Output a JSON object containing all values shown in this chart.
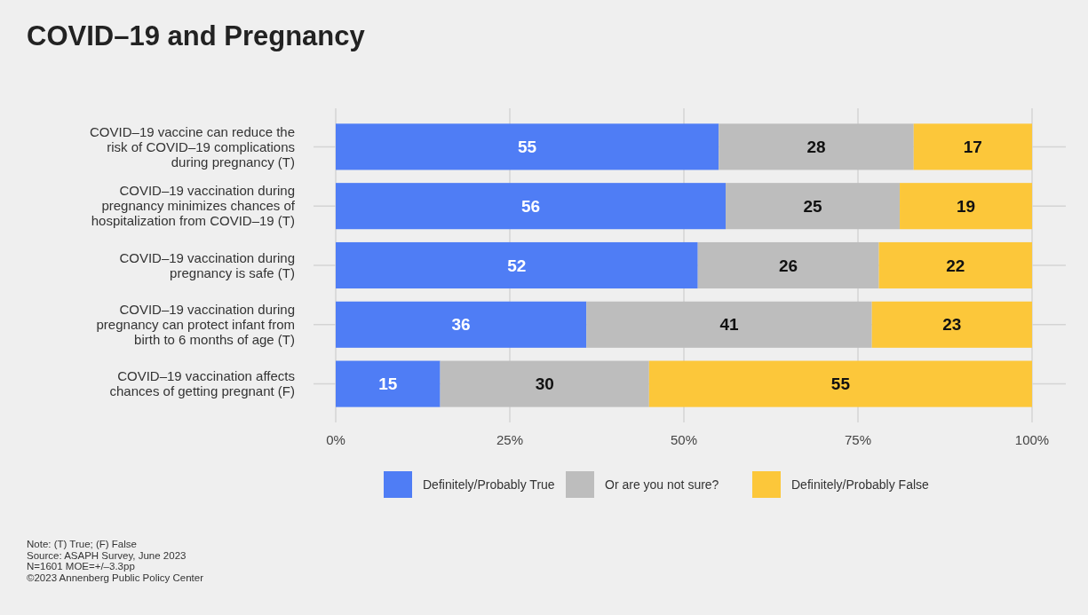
{
  "chart_data": {
    "type": "bar",
    "orientation": "horizontal",
    "stacked": true,
    "title": "COVID–19 and Pregnancy",
    "categories": [
      "COVID–19 vaccine can reduce the risk of COVID–19 complications during pregnancy (T)",
      "COVID–19 vaccination during pregnancy minimizes chances of hospitalization from COVID–19 (T)",
      "COVID–19 vaccination during pregnancy is safe (T)",
      "COVID–19 vaccination during pregnancy can protect infant from birth to 6 months of age (T)",
      "COVID–19 vaccination affects chances of getting pregnant (F)"
    ],
    "series": [
      {
        "name": "Definitely/Probably True",
        "color": "#4f7df5",
        "values": [
          55,
          56,
          52,
          36,
          15
        ]
      },
      {
        "name": "Or are you not sure?",
        "color": "#bdbdbd",
        "values": [
          28,
          25,
          26,
          41,
          30
        ]
      },
      {
        "name": "Definitely/Probably False",
        "color": "#fcc73a",
        "values": [
          17,
          19,
          22,
          23,
          55
        ]
      }
    ],
    "xlim": [
      0,
      100
    ],
    "xticks": [
      {
        "value": 0,
        "label": "0%"
      },
      {
        "value": 25,
        "label": "25%"
      },
      {
        "value": 50,
        "label": "50%"
      },
      {
        "value": 75,
        "label": "75%"
      },
      {
        "value": 100,
        "label": "100%"
      }
    ],
    "grid": true,
    "legend": "bottom",
    "data_labels": true,
    "annotations": [
      "Note: (T) True; (F) False",
      "Source: ASAPH Survey, June 2023",
      "N=1601 MOE=+/–3.3pp",
      "©2023 Annenberg Public Policy Center"
    ]
  }
}
